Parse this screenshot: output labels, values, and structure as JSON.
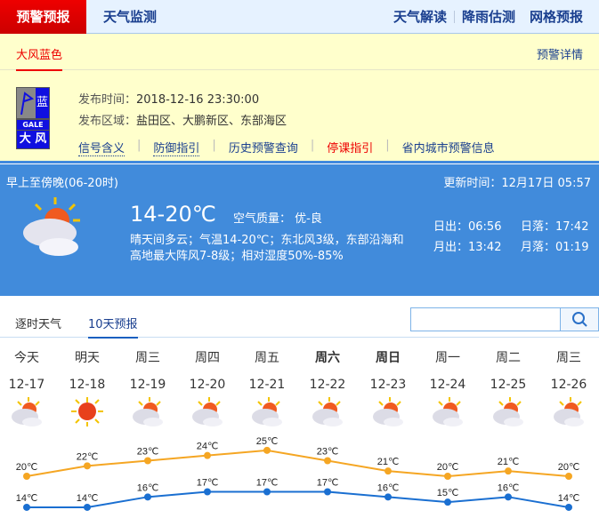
{
  "topnav": {
    "active": "预警预报",
    "tab2": "天气监测",
    "links": [
      "天气解读",
      "降雨估测",
      "网格预报"
    ]
  },
  "warning": {
    "title": "大风蓝色",
    "detail": "预警详情",
    "badge": {
      "level": "蓝",
      "en": "GALE",
      "cn": "大 风",
      "color": "#1010e0"
    },
    "time_label": "发布时间：",
    "time": "2018-12-16 23:30:00",
    "area_label": "发布区域：",
    "area": "盐田区、大鹏新区、东部海区",
    "links": [
      "信号含义",
      "防御指引",
      "历史预警查询",
      "停课指引",
      "省内城市预警信息"
    ]
  },
  "today": {
    "period": "早上至傍晚(06-20时)",
    "update": "更新时间：12月17日 05:57",
    "temp": "14-20℃",
    "aqi": "空气质量： 优-良",
    "desc1": "晴天间多云；气温14-20℃；东北风3级，东部沿海和",
    "desc2": "高地最大阵风7-8级；相对湿度50%-85%",
    "sunrise": "日出：06:56",
    "sunset": "日落：17:42",
    "moonrise": "月出：13:42",
    "moonset": "月落：01:19",
    "icon": "partly-cloudy-icon"
  },
  "tabs": [
    "逐时天气",
    "10天预报"
  ],
  "search": {
    "placeholder": ""
  },
  "forecast": {
    "days": [
      "今天",
      "明天",
      "周三",
      "周四",
      "周五",
      "周六",
      "周日",
      "周一",
      "周二",
      "周三"
    ],
    "dates": [
      "12-17",
      "12-18",
      "12-19",
      "12-20",
      "12-21",
      "12-22",
      "12-23",
      "12-24",
      "12-25",
      "12-26"
    ],
    "icons": [
      "partly-cloudy",
      "sunny",
      "partly-cloudy",
      "partly-cloudy",
      "partly-cloudy",
      "partly-cloudy",
      "partly-cloudy",
      "partly-cloudy",
      "partly-cloudy",
      "partly-cloudy"
    ],
    "bold": [
      false,
      false,
      false,
      false,
      false,
      true,
      true,
      false,
      false,
      false
    ]
  },
  "chart_data": {
    "type": "line",
    "categories": [
      "12-17",
      "12-18",
      "12-19",
      "12-20",
      "12-21",
      "12-22",
      "12-23",
      "12-24",
      "12-25",
      "12-26"
    ],
    "series": [
      {
        "values": [
          20,
          22,
          23,
          24,
          25,
          23,
          21,
          20,
          21,
          20
        ],
        "color": "#f5a623"
      },
      {
        "values": [
          14,
          14,
          16,
          17,
          17,
          17,
          16,
          15,
          16,
          14
        ],
        "color": "#1a6fd1"
      }
    ],
    "unit": "℃"
  }
}
